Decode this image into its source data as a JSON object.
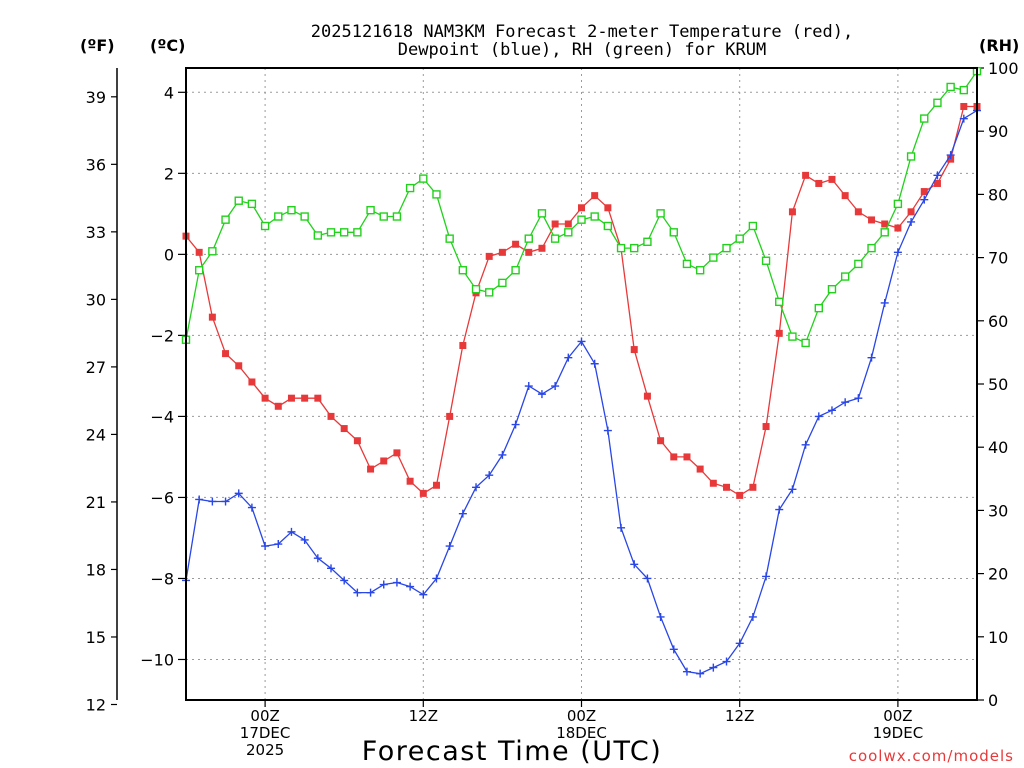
{
  "chart_data": {
    "type": "line",
    "title_line1": "2025121618 NAM3KM Forecast 2-meter Temperature (red),",
    "title_line2": "Dewpoint (blue), RH (green) for KRUM",
    "unit_f": "(ºF)",
    "unit_c": "(ºC)",
    "unit_rh": "(RH)",
    "xlabel": "Forecast Time (UTC)",
    "credit": "coolwx.com/models",
    "x_range": [
      0,
      60
    ],
    "c_range": [
      -11.0,
      4.6
    ],
    "rh_range": [
      0,
      100
    ],
    "c_ticks": [
      4,
      2,
      0,
      -2,
      -4,
      -6,
      -8,
      -10
    ],
    "c_tick_labels": [
      "4",
      "2",
      "0",
      "−2",
      "−4",
      "−6",
      "−8",
      "−10"
    ],
    "f_ticks": [
      39,
      36,
      33,
      30,
      27,
      24,
      21,
      18,
      15,
      12
    ],
    "rh_ticks": [
      100,
      90,
      80,
      70,
      60,
      50,
      40,
      30,
      20,
      10,
      0
    ],
    "x_ticks": [
      {
        "hour": 6,
        "lines": [
          "00Z",
          "17DEC",
          "2025"
        ]
      },
      {
        "hour": 18,
        "lines": [
          "12Z"
        ]
      },
      {
        "hour": 30,
        "lines": [
          "00Z",
          "18DEC"
        ]
      },
      {
        "hour": 42,
        "lines": [
          "12Z"
        ]
      },
      {
        "hour": 54,
        "lines": [
          "00Z",
          "19DEC"
        ]
      }
    ],
    "series": [
      {
        "name": "2-meter Temperature",
        "unit": "C",
        "color": "#e8393a",
        "marker": "filled-square",
        "x": [
          0,
          1,
          2,
          3,
          4,
          5,
          6,
          7,
          8,
          9,
          10,
          11,
          12,
          13,
          14,
          15,
          16,
          17,
          18,
          19,
          20,
          21,
          22,
          23,
          24,
          25,
          26,
          27,
          28,
          29,
          30,
          31,
          32,
          33,
          34,
          35,
          36,
          37,
          38,
          39,
          40,
          41,
          42,
          43,
          44,
          45,
          46,
          47,
          48,
          49,
          50,
          51,
          52,
          53,
          54,
          55,
          56,
          57,
          58,
          59,
          60
        ],
        "values": [
          0.45,
          0.05,
          -1.55,
          -2.45,
          -2.75,
          -3.15,
          -3.55,
          -3.75,
          -3.55,
          -3.55,
          -3.55,
          -4.0,
          -4.3,
          -4.6,
          -5.3,
          -5.1,
          -4.9,
          -5.6,
          -5.9,
          -5.7,
          -4.0,
          -2.25,
          -0.95,
          -0.05,
          0.05,
          0.25,
          0.05,
          0.15,
          0.75,
          0.75,
          1.15,
          1.45,
          1.15,
          0.15,
          -2.35,
          -3.5,
          -4.6,
          -5.0,
          -5.0,
          -5.3,
          -5.65,
          -5.75,
          -5.95,
          -5.75,
          -4.25,
          -1.95,
          1.05,
          1.95,
          1.75,
          1.85,
          1.45,
          1.05,
          0.85,
          0.75,
          0.65,
          1.05,
          1.55,
          1.75,
          2.35,
          3.65,
          3.65
        ]
      },
      {
        "name": "Dewpoint",
        "unit": "C",
        "color": "#2946e6",
        "marker": "plus",
        "x": [
          0,
          1,
          2,
          3,
          4,
          5,
          6,
          7,
          8,
          9,
          10,
          11,
          12,
          13,
          14,
          15,
          16,
          17,
          18,
          19,
          20,
          21,
          22,
          23,
          24,
          25,
          26,
          27,
          28,
          29,
          30,
          31,
          32,
          33,
          34,
          35,
          36,
          37,
          38,
          39,
          40,
          41,
          42,
          43,
          44,
          45,
          46,
          47,
          48,
          49,
          50,
          51,
          52,
          53,
          54,
          55,
          56,
          57,
          58,
          59,
          60
        ],
        "values": [
          -8.05,
          -6.05,
          -6.1,
          -6.1,
          -5.9,
          -6.25,
          -7.2,
          -7.15,
          -6.85,
          -7.05,
          -7.5,
          -7.75,
          -8.05,
          -8.35,
          -8.35,
          -8.15,
          -8.1,
          -8.2,
          -8.4,
          -8.0,
          -7.2,
          -6.4,
          -5.75,
          -5.45,
          -4.95,
          -4.2,
          -3.25,
          -3.45,
          -3.25,
          -2.55,
          -2.15,
          -2.7,
          -4.35,
          -6.75,
          -7.65,
          -8.0,
          -8.95,
          -9.75,
          -10.3,
          -10.35,
          -10.2,
          -10.05,
          -9.6,
          -8.95,
          -7.95,
          -6.3,
          -5.8,
          -4.7,
          -4.0,
          -3.85,
          -3.65,
          -3.55,
          -2.55,
          -1.2,
          0.05,
          0.8,
          1.35,
          1.95,
          2.45,
          3.35,
          3.55
        ]
      },
      {
        "name": "RH",
        "unit": "%",
        "color": "#22d11c",
        "marker": "open-square",
        "x": [
          0,
          1,
          2,
          3,
          4,
          5,
          6,
          7,
          8,
          9,
          10,
          11,
          12,
          13,
          14,
          15,
          16,
          17,
          18,
          19,
          20,
          21,
          22,
          23,
          24,
          25,
          26,
          27,
          28,
          29,
          30,
          31,
          32,
          33,
          34,
          35,
          36,
          37,
          38,
          39,
          40,
          41,
          42,
          43,
          44,
          45,
          46,
          47,
          48,
          49,
          50,
          51,
          52,
          53,
          54,
          55,
          56,
          57,
          58,
          59,
          60
        ],
        "values": [
          57,
          68,
          71,
          76,
          79,
          78.5,
          75,
          76.5,
          77.5,
          76.5,
          73.5,
          74,
          74,
          74,
          77.5,
          76.5,
          76.5,
          81,
          82.5,
          80,
          73,
          68,
          65,
          64.5,
          66,
          68,
          73,
          77,
          73,
          74,
          76,
          76.5,
          75,
          71.5,
          71.5,
          72.5,
          77,
          74,
          69,
          68,
          70,
          71.5,
          73,
          75,
          69.5,
          63,
          57.5,
          56.5,
          62,
          65,
          67,
          69,
          71.5,
          74,
          78.5,
          86,
          92,
          94.5,
          97,
          96.5,
          99.5
        ]
      }
    ]
  }
}
